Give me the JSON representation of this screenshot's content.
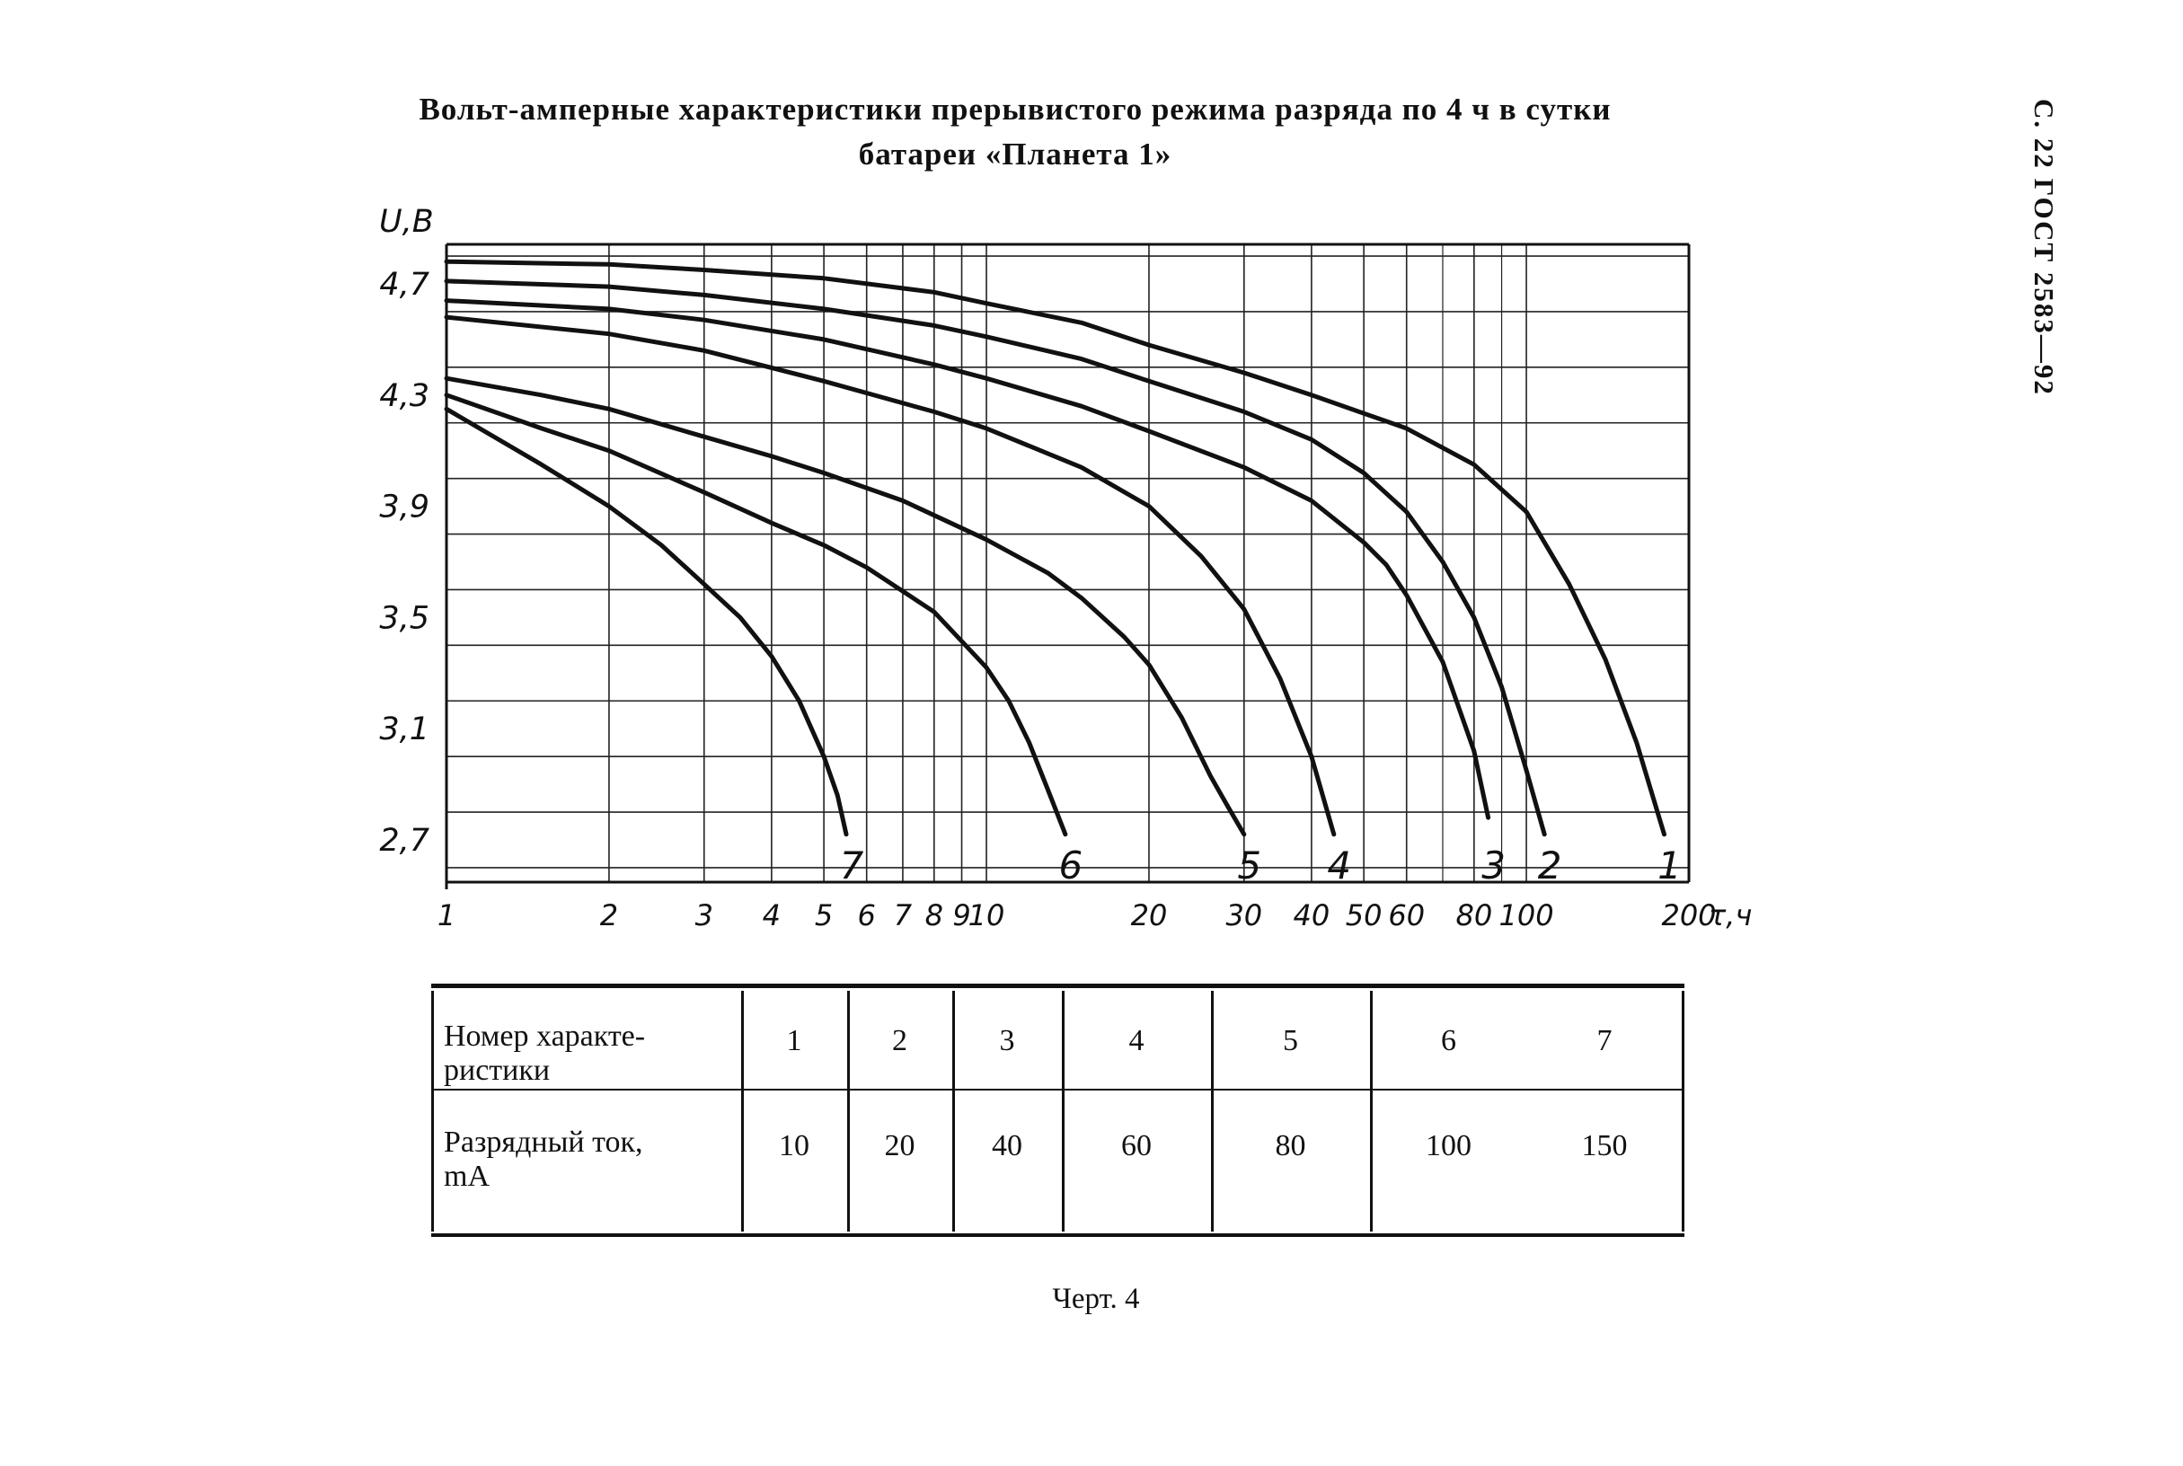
{
  "header": {
    "title_line1": "Вольт-амперные характеристики прерывистого режима разряда по 4 ч в сутки",
    "title_line2": "батареи «Планета 1»",
    "side_label": "С. 22 ГОСТ 2583—92"
  },
  "chart_data": {
    "type": "line",
    "ylabel": "U,B",
    "xlabel": "τ,ч",
    "x_scale": "log",
    "xlim": [
      1,
      200
    ],
    "ylim": [
      2.7,
      4.85
    ],
    "y_ticks": [
      4.7,
      4.3,
      3.9,
      3.5,
      3.1,
      2.7
    ],
    "y_tick_labels": [
      "4,7",
      "4,3",
      "3,9",
      "3,5",
      "3,1",
      "2,7"
    ],
    "x_ticks": [
      1,
      2,
      3,
      4,
      5,
      6,
      7,
      8,
      9,
      10,
      20,
      30,
      40,
      50,
      60,
      80,
      100,
      200
    ],
    "x_tick_labels": [
      "1",
      "2",
      "3",
      "4",
      "5",
      "6",
      "7",
      "8",
      "9",
      "10",
      "20",
      "30",
      "40",
      "50",
      "60",
      "80",
      "100",
      "200"
    ],
    "grid": true,
    "series": [
      {
        "name": "1",
        "x": [
          1,
          2,
          3,
          5,
          8,
          10,
          15,
          20,
          30,
          40,
          60,
          80,
          100,
          120,
          140,
          160,
          170,
          180
        ],
        "y": [
          4.78,
          4.77,
          4.75,
          4.72,
          4.67,
          4.63,
          4.56,
          4.48,
          4.38,
          4.3,
          4.18,
          4.05,
          3.88,
          3.62,
          3.35,
          3.05,
          2.88,
          2.72
        ]
      },
      {
        "name": "2",
        "x": [
          1,
          2,
          3,
          5,
          8,
          10,
          15,
          20,
          30,
          40,
          50,
          60,
          70,
          80,
          90,
          100,
          108
        ],
        "y": [
          4.71,
          4.69,
          4.66,
          4.61,
          4.55,
          4.51,
          4.43,
          4.35,
          4.24,
          4.14,
          4.02,
          3.88,
          3.7,
          3.5,
          3.25,
          2.95,
          2.72
        ]
      },
      {
        "name": "3",
        "x": [
          1,
          2,
          3,
          5,
          8,
          10,
          15,
          20,
          30,
          40,
          50,
          55,
          60,
          70,
          80,
          85
        ],
        "y": [
          4.64,
          4.61,
          4.57,
          4.5,
          4.41,
          4.36,
          4.26,
          4.17,
          4.04,
          3.92,
          3.77,
          3.69,
          3.58,
          3.34,
          3.02,
          2.78
        ]
      },
      {
        "name": "4",
        "x": [
          1,
          2,
          3,
          5,
          8,
          10,
          15,
          20,
          25,
          30,
          35,
          40,
          44
        ],
        "y": [
          4.58,
          4.52,
          4.46,
          4.35,
          4.24,
          4.18,
          4.04,
          3.9,
          3.72,
          3.53,
          3.28,
          3.0,
          2.72
        ]
      },
      {
        "name": "5",
        "x": [
          1,
          1.5,
          2,
          3,
          4,
          5,
          7,
          10,
          13,
          15,
          18,
          20,
          23,
          26,
          28,
          30
        ],
        "y": [
          4.36,
          4.3,
          4.25,
          4.15,
          4.08,
          4.02,
          3.92,
          3.78,
          3.66,
          3.57,
          3.43,
          3.33,
          3.14,
          2.93,
          2.82,
          2.72
        ]
      },
      {
        "name": "6",
        "x": [
          1,
          1.5,
          2,
          3,
          4,
          5,
          6,
          8,
          10,
          11,
          12,
          13,
          14
        ],
        "y": [
          4.3,
          4.18,
          4.1,
          3.95,
          3.84,
          3.76,
          3.68,
          3.52,
          3.32,
          3.2,
          3.05,
          2.88,
          2.72
        ]
      },
      {
        "name": "7",
        "x": [
          1,
          1.5,
          2,
          2.5,
          3,
          3.5,
          4,
          4.5,
          5,
          5.3,
          5.5
        ],
        "y": [
          4.25,
          4.05,
          3.9,
          3.76,
          3.62,
          3.5,
          3.36,
          3.2,
          3.0,
          2.86,
          2.72
        ]
      }
    ],
    "series_labels": [
      "7",
      "6",
      "5",
      "4",
      "3",
      "2",
      "1"
    ]
  },
  "table": {
    "row1_label": "Номер характе-ристики",
    "row1_label_a": "Номер характе-",
    "row1_label_b": "ристики",
    "row2_label_a": "Разрядный ток,",
    "row2_label_b": "mA",
    "numbers": [
      "1",
      "2",
      "3",
      "4",
      "5",
      "6",
      "7"
    ],
    "currents": [
      "10",
      "20",
      "40",
      "60",
      "80",
      "100",
      "150"
    ]
  },
  "caption": "Черт. 4"
}
